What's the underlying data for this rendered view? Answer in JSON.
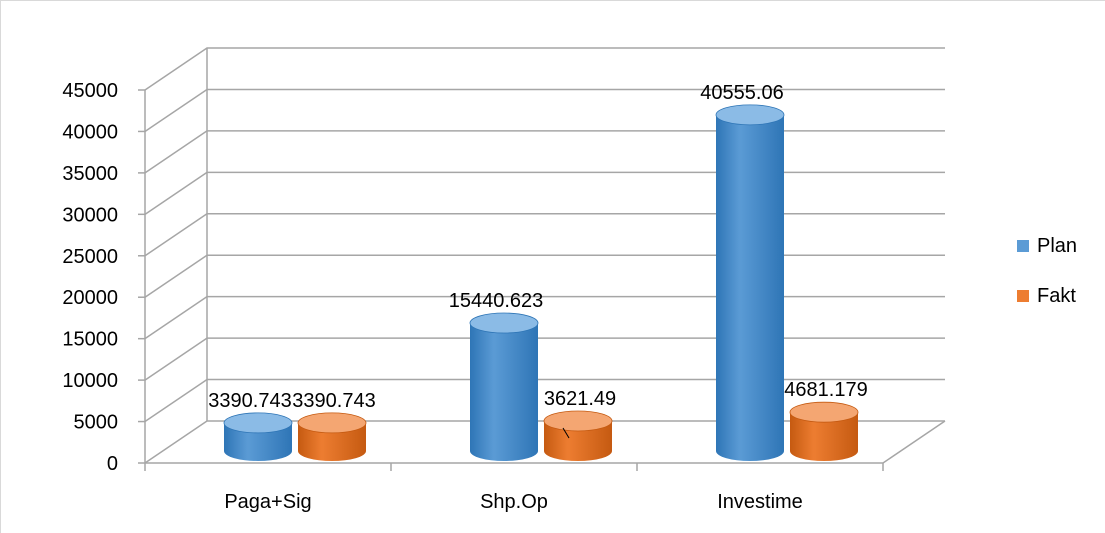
{
  "chart_data": {
    "type": "bar",
    "style": "3d-cylinder",
    "categories": [
      "Paga+Sig",
      "Shp.Op",
      "Investime"
    ],
    "series": [
      {
        "name": "Plan",
        "color": "#5B9BD5",
        "dark": "#2E75B6",
        "light": "#8BBBE6",
        "values": [
          3390.743,
          15440.623,
          40555.06
        ]
      },
      {
        "name": "Fakt",
        "color": "#ED7D31",
        "dark": "#C55A11",
        "light": "#F4A672",
        "values": [
          3390.743,
          3621.49,
          4681.179
        ]
      }
    ],
    "data_labels": [
      [
        "3390.743",
        "15440.623",
        "40555.06"
      ],
      [
        "3390.743",
        "3621.49",
        "4681.179"
      ]
    ],
    "y_ticks": [
      "0",
      "5000",
      "10000",
      "15000",
      "20000",
      "25000",
      "30000",
      "35000",
      "40000",
      "45000"
    ],
    "ylim": [
      0,
      45000
    ],
    "grid": true,
    "legend": "right"
  }
}
